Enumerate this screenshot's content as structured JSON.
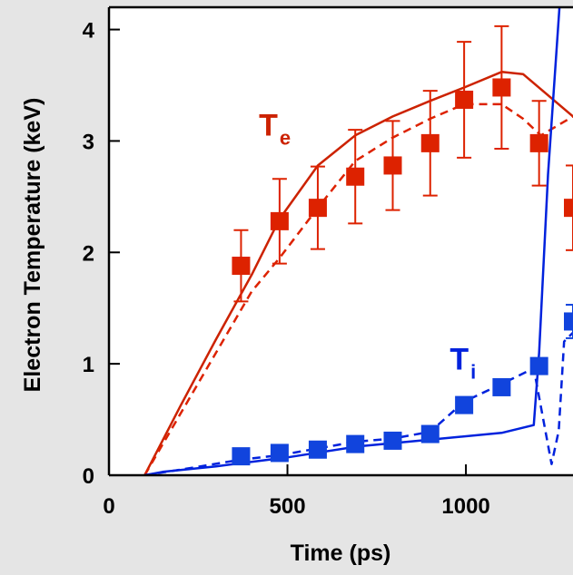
{
  "chart_data": {
    "type": "line",
    "xlabel": "Time (ps)",
    "ylabel": "Electron Temperature (keV)",
    "xlim": [
      0,
      1300
    ],
    "ylim": [
      0,
      4.2
    ],
    "x_ticks": [
      0,
      500,
      1000
    ],
    "x_tick_labels": [
      "0",
      "500",
      "1000"
    ],
    "y_ticks": [
      0,
      1,
      2,
      3,
      4
    ],
    "y_tick_labels": [
      "0",
      "1",
      "2",
      "3",
      "4"
    ],
    "grid": false,
    "colors": {
      "te": "#cc2200",
      "te_marker": "#dd2200",
      "ti": "#0022dd",
      "ti_marker": "#1144dd"
    },
    "annotations": [
      {
        "id": "te",
        "main": "T",
        "sub": "e",
        "color": "#cc2200",
        "x": 420,
        "y": 3.05
      },
      {
        "id": "ti",
        "main": "T",
        "sub": "i",
        "color": "#0022dd",
        "x": 955,
        "y": 0.95
      }
    ],
    "series": [
      {
        "id": "te-measured",
        "kind": "markers",
        "color": "#dd2200",
        "x": [
          370,
          478,
          585,
          690,
          795,
          900,
          995,
          1100,
          1205,
          1300
        ],
        "y": [
          1.88,
          2.28,
          2.4,
          2.68,
          2.78,
          2.98,
          3.37,
          3.48,
          2.98,
          2.4
        ],
        "err": [
          0.32,
          0.38,
          0.37,
          0.42,
          0.4,
          0.47,
          0.52,
          0.55,
          0.38,
          0.38
        ]
      },
      {
        "id": "te-model-solid",
        "kind": "line",
        "style": "solid",
        "color": "#cc2200",
        "x": [
          100,
          200,
          300,
          400,
          478,
          585,
          690,
          795,
          900,
          995,
          1100,
          1160,
          1300
        ],
        "y": [
          0.0,
          0.62,
          1.22,
          1.8,
          2.3,
          2.78,
          3.05,
          3.22,
          3.36,
          3.48,
          3.62,
          3.6,
          3.22
        ]
      },
      {
        "id": "te-model-dashed",
        "kind": "line",
        "style": "dashed",
        "color": "#dd2200",
        "x": [
          100,
          200,
          300,
          400,
          478,
          585,
          690,
          795,
          900,
          995,
          1100,
          1160,
          1210,
          1300
        ],
        "y": [
          0.0,
          0.55,
          1.1,
          1.65,
          1.95,
          2.4,
          2.82,
          3.03,
          3.2,
          3.33,
          3.33,
          3.2,
          3.05,
          3.22
        ]
      },
      {
        "id": "ti-measured",
        "kind": "markers",
        "color": "#1144dd",
        "x": [
          370,
          478,
          585,
          690,
          795,
          900,
          995,
          1100,
          1205,
          1300
        ],
        "y": [
          0.17,
          0.2,
          0.23,
          0.28,
          0.31,
          0.37,
          0.63,
          0.79,
          0.98,
          1.38
        ],
        "err": [
          0.07,
          0.07,
          0.07,
          0.07,
          0.07,
          0.07,
          0.07,
          0.07,
          0.07,
          0.15
        ]
      },
      {
        "id": "ti-model-solid",
        "kind": "line",
        "style": "solid",
        "color": "#0022dd",
        "x": [
          100,
          150,
          300,
          500,
          700,
          900,
          1100,
          1190,
          1205,
          1230,
          1262
        ],
        "y": [
          0.0,
          0.03,
          0.08,
          0.16,
          0.26,
          0.32,
          0.38,
          0.45,
          1.1,
          2.7,
          4.2
        ]
      },
      {
        "id": "ti-model-dashed",
        "kind": "line",
        "style": "dashed",
        "color": "#0022dd",
        "x": [
          100,
          200,
          370,
          478,
          585,
          690,
          795,
          900,
          995,
          1100,
          1190,
          1240,
          1260,
          1275,
          1300
        ],
        "y": [
          0.0,
          0.05,
          0.14,
          0.18,
          0.24,
          0.3,
          0.33,
          0.39,
          0.66,
          0.82,
          0.96,
          0.1,
          0.4,
          1.2,
          1.28
        ]
      }
    ]
  }
}
